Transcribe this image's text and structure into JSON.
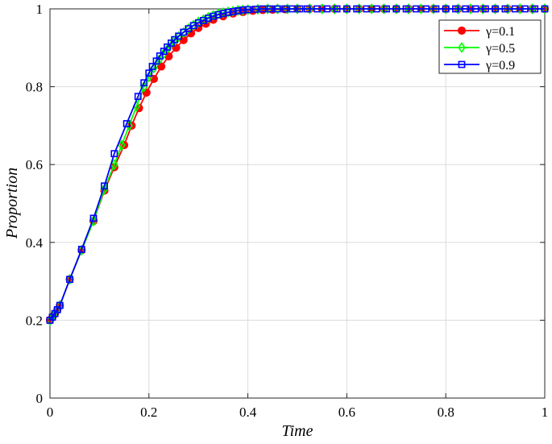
{
  "chart_data": {
    "type": "line",
    "xlabel": "Time",
    "ylabel": "Proportion",
    "xlim": [
      0,
      1
    ],
    "ylim": [
      0,
      1
    ],
    "x_ticks": [
      "0",
      "0.2",
      "0.4",
      "0.6",
      "0.8",
      "1"
    ],
    "y_ticks": [
      "0",
      "0.2",
      "0.4",
      "0.6",
      "0.8",
      "1"
    ],
    "grid": true,
    "legend_position": "top-right",
    "series": [
      {
        "name": "γ=0.1",
        "color": "#ff0000",
        "marker": "circle",
        "x": [
          0,
          0.005,
          0.01,
          0.015,
          0.02,
          0.04,
          0.064,
          0.088,
          0.11,
          0.13,
          0.15,
          0.165,
          0.18,
          0.195,
          0.21,
          0.225,
          0.24,
          0.255,
          0.27,
          0.285,
          0.3,
          0.315,
          0.33,
          0.35,
          0.37,
          0.39,
          0.41,
          0.43,
          0.45,
          0.475,
          0.5,
          0.525,
          0.55,
          0.575,
          0.6,
          0.625,
          0.65,
          0.675,
          0.7,
          0.725,
          0.75,
          0.775,
          0.8,
          0.825,
          0.85,
          0.875,
          0.9,
          0.925,
          0.95,
          0.975,
          1.0
        ],
        "y": [
          0.2,
          0.208,
          0.217,
          0.227,
          0.238,
          0.305,
          0.38,
          0.455,
          0.533,
          0.593,
          0.65,
          0.7,
          0.745,
          0.785,
          0.82,
          0.852,
          0.878,
          0.9,
          0.92,
          0.937,
          0.951,
          0.962,
          0.972,
          0.981,
          0.988,
          0.992,
          0.995,
          0.997,
          0.998,
          0.999,
          1.0,
          1.0,
          1.0,
          1.0,
          1.0,
          1.0,
          1.0,
          1.0,
          1.0,
          1.0,
          1.0,
          1.0,
          1.0,
          1.0,
          1.0,
          1.0,
          1.0,
          1.0,
          1.0,
          1.0,
          1.0
        ]
      },
      {
        "name": "γ=0.5",
        "color": "#00ff00",
        "marker": "diamond",
        "x": [
          0,
          0.005,
          0.01,
          0.015,
          0.02,
          0.04,
          0.064,
          0.088,
          0.11,
          0.13,
          0.145,
          0.16,
          0.175,
          0.19,
          0.2,
          0.21,
          0.22,
          0.23,
          0.24,
          0.25,
          0.26,
          0.27,
          0.28,
          0.29,
          0.3,
          0.31,
          0.32,
          0.33,
          0.34,
          0.35,
          0.36,
          0.37,
          0.38,
          0.39,
          0.4,
          0.42,
          0.44,
          0.46,
          0.48,
          0.5,
          0.525,
          0.55,
          0.575,
          0.6,
          0.625,
          0.65,
          0.675,
          0.7,
          0.725,
          0.75,
          0.775,
          0.8,
          0.825,
          0.85,
          0.875,
          0.9,
          0.925,
          0.95,
          0.975,
          1.0
        ],
        "y": [
          0.2,
          0.208,
          0.217,
          0.227,
          0.238,
          0.305,
          0.38,
          0.455,
          0.537,
          0.6,
          0.65,
          0.7,
          0.75,
          0.8,
          0.825,
          0.848,
          0.868,
          0.885,
          0.901,
          0.915,
          0.928,
          0.939,
          0.949,
          0.958,
          0.966,
          0.972,
          0.978,
          0.983,
          0.987,
          0.99,
          0.992,
          0.994,
          0.996,
          0.997,
          0.998,
          0.999,
          1.0,
          1.0,
          1.0,
          1.0,
          1.0,
          1.0,
          1.0,
          1.0,
          1.0,
          1.0,
          1.0,
          1.0,
          1.0,
          1.0,
          1.0,
          1.0,
          1.0,
          1.0,
          1.0,
          1.0,
          1.0,
          1.0,
          1.0,
          1.0
        ]
      },
      {
        "name": "γ=0.9",
        "color": "#0000ff",
        "marker": "square",
        "x": [
          0,
          0.005,
          0.01,
          0.015,
          0.02,
          0.04,
          0.064,
          0.088,
          0.11,
          0.13,
          0.155,
          0.178,
          0.19,
          0.2,
          0.207,
          0.215,
          0.222,
          0.23,
          0.237,
          0.245,
          0.252,
          0.26,
          0.27,
          0.28,
          0.29,
          0.3,
          0.31,
          0.32,
          0.33,
          0.34,
          0.35,
          0.36,
          0.37,
          0.38,
          0.39,
          0.4,
          0.415,
          0.43,
          0.445,
          0.46,
          0.475,
          0.49,
          0.505,
          0.52,
          0.54,
          0.56,
          0.58,
          0.6,
          0.62,
          0.64,
          0.66,
          0.68,
          0.7,
          0.72,
          0.74,
          0.76,
          0.78,
          0.8,
          0.82,
          0.84,
          0.86,
          0.88,
          0.9,
          0.92,
          0.94,
          0.96,
          0.98,
          1.0
        ],
        "y": [
          0.2,
          0.208,
          0.217,
          0.227,
          0.238,
          0.305,
          0.382,
          0.462,
          0.545,
          0.628,
          0.705,
          0.775,
          0.81,
          0.835,
          0.852,
          0.866,
          0.879,
          0.891,
          0.902,
          0.912,
          0.921,
          0.93,
          0.94,
          0.949,
          0.957,
          0.964,
          0.97,
          0.976,
          0.981,
          0.985,
          0.988,
          0.991,
          0.993,
          0.995,
          0.997,
          0.998,
          0.999,
          1.0,
          1.0,
          1.0,
          1.0,
          1.0,
          1.0,
          1.0,
          1.0,
          1.0,
          1.0,
          1.0,
          1.0,
          1.0,
          1.0,
          1.0,
          1.0,
          1.0,
          1.0,
          1.0,
          1.0,
          1.0,
          1.0,
          1.0,
          1.0,
          1.0,
          1.0,
          1.0,
          1.0,
          1.0,
          1.0,
          1.0
        ]
      }
    ]
  }
}
